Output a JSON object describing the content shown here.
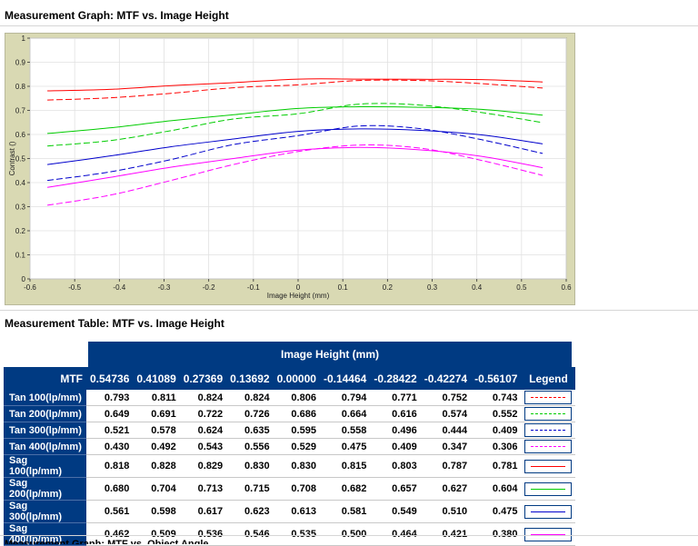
{
  "graph": {
    "title": "Measurement Graph: MTF vs. Image Height"
  },
  "table": {
    "title": "Measurement Table: MTF vs. Image Height",
    "group_header": "Image Height (mm)",
    "corner_header": "MTF",
    "columns": [
      "0.54736",
      "0.41089",
      "0.27369",
      "0.13692",
      "0.00000",
      "-0.14464",
      "-0.28422",
      "-0.42274",
      "-0.56107"
    ],
    "legend_header": "Legend",
    "rows": [
      {
        "label": "Tan 100(lp/mm)",
        "values": [
          "0.793",
          "0.811",
          "0.824",
          "0.824",
          "0.806",
          "0.794",
          "0.771",
          "0.752",
          "0.743"
        ],
        "color": "#ff0000",
        "style": "dashed"
      },
      {
        "label": "Tan 200(lp/mm)",
        "values": [
          "0.649",
          "0.691",
          "0.722",
          "0.726",
          "0.686",
          "0.664",
          "0.616",
          "0.574",
          "0.552"
        ],
        "color": "#00cc00",
        "style": "dashed"
      },
      {
        "label": "Tan 300(lp/mm)",
        "values": [
          "0.521",
          "0.578",
          "0.624",
          "0.635",
          "0.595",
          "0.558",
          "0.496",
          "0.444",
          "0.409"
        ],
        "color": "#0000cc",
        "style": "dashed"
      },
      {
        "label": "Tan 400(lp/mm)",
        "values": [
          "0.430",
          "0.492",
          "0.543",
          "0.556",
          "0.529",
          "0.475",
          "0.409",
          "0.347",
          "0.306"
        ],
        "color": "#ff00ff",
        "style": "dashed"
      },
      {
        "label": "Sag 100(lp/mm)",
        "values": [
          "0.818",
          "0.828",
          "0.829",
          "0.830",
          "0.830",
          "0.815",
          "0.803",
          "0.787",
          "0.781"
        ],
        "color": "#ff0000",
        "style": "solid"
      },
      {
        "label": "Sag 200(lp/mm)",
        "values": [
          "0.680",
          "0.704",
          "0.713",
          "0.715",
          "0.708",
          "0.682",
          "0.657",
          "0.627",
          "0.604"
        ],
        "color": "#00cc00",
        "style": "solid"
      },
      {
        "label": "Sag 300(lp/mm)",
        "values": [
          "0.561",
          "0.598",
          "0.617",
          "0.623",
          "0.613",
          "0.581",
          "0.549",
          "0.510",
          "0.475"
        ],
        "color": "#0000cc",
        "style": "solid"
      },
      {
        "label": "Sag 400(lp/mm)",
        "values": [
          "0.462",
          "0.509",
          "0.536",
          "0.546",
          "0.535",
          "0.500",
          "0.464",
          "0.421",
          "0.380"
        ],
        "color": "#ff00ff",
        "style": "solid"
      }
    ]
  },
  "footer": {
    "partial_title": "Measurement Graph: MTF vs. Object Angle"
  },
  "chart_data": {
    "type": "line",
    "xlabel": "Image Height (mm)",
    "ylabel": "Contrast ()",
    "xlim": [
      -0.6,
      0.6
    ],
    "ylim": [
      0,
      1
    ],
    "xticks": [
      "-0.6",
      "-0.5",
      "-0.4",
      "-0.3",
      "-0.2",
      "-0.1",
      "0",
      "0.1",
      "0.2",
      "0.3",
      "0.4",
      "0.5",
      "0.6"
    ],
    "yticks": [
      "0",
      "0.1",
      "0.2",
      "0.3",
      "0.4",
      "0.5",
      "0.6",
      "0.7",
      "0.8",
      "0.9",
      "1"
    ],
    "grid": true,
    "x": [
      -0.56107,
      -0.42274,
      -0.28422,
      -0.14464,
      0.0,
      0.13692,
      0.27369,
      0.41089,
      0.54736
    ],
    "series": [
      {
        "name": "Tan 100(lp/mm)",
        "color": "#ff0000",
        "style": "dashed",
        "values": [
          0.743,
          0.752,
          0.771,
          0.794,
          0.806,
          0.824,
          0.824,
          0.811,
          0.793
        ]
      },
      {
        "name": "Tan 200(lp/mm)",
        "color": "#00cc00",
        "style": "dashed",
        "values": [
          0.552,
          0.574,
          0.616,
          0.664,
          0.686,
          0.726,
          0.722,
          0.691,
          0.649
        ]
      },
      {
        "name": "Tan 300(lp/mm)",
        "color": "#0000cc",
        "style": "dashed",
        "values": [
          0.409,
          0.444,
          0.496,
          0.558,
          0.595,
          0.635,
          0.624,
          0.578,
          0.521
        ]
      },
      {
        "name": "Tan 400(lp/mm)",
        "color": "#ff00ff",
        "style": "dashed",
        "values": [
          0.306,
          0.347,
          0.409,
          0.475,
          0.529,
          0.556,
          0.543,
          0.492,
          0.43
        ]
      },
      {
        "name": "Sag 100(lp/mm)",
        "color": "#ff0000",
        "style": "solid",
        "values": [
          0.781,
          0.787,
          0.803,
          0.815,
          0.83,
          0.83,
          0.829,
          0.828,
          0.818
        ]
      },
      {
        "name": "Sag 200(lp/mm)",
        "color": "#00cc00",
        "style": "solid",
        "values": [
          0.604,
          0.627,
          0.657,
          0.682,
          0.708,
          0.715,
          0.713,
          0.704,
          0.68
        ]
      },
      {
        "name": "Sag 300(lp/mm)",
        "color": "#0000cc",
        "style": "solid",
        "values": [
          0.475,
          0.51,
          0.549,
          0.581,
          0.613,
          0.623,
          0.617,
          0.598,
          0.561
        ]
      },
      {
        "name": "Sag 400(lp/mm)",
        "color": "#ff00ff",
        "style": "solid",
        "values": [
          0.38,
          0.421,
          0.464,
          0.5,
          0.535,
          0.546,
          0.536,
          0.509,
          0.462
        ]
      }
    ]
  }
}
